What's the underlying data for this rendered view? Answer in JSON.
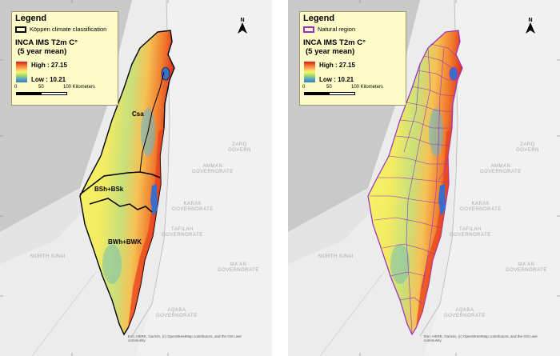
{
  "left_panel": {
    "legend_title": "Legend",
    "layer_name": "Köppen climate classification",
    "raster_title": "INCA IMS T2m C°",
    "raster_subtitle": "(5 year mean)",
    "high_label": "High : 27.15",
    "low_label": "Low : 10.21",
    "scale_0": "0",
    "scale_50": "50",
    "scale_100": "100 Kilometers",
    "zones": [
      "Csa",
      "BSh+BSk",
      "BWh+BWK"
    ],
    "regions": {
      "amman": "AMMAN\nGOVERNORATE",
      "zarqa": "ZARQ\nGOVERN",
      "karak": "KARAK\nGOVERNORATE",
      "tafilah": "TAFILAH\nGOVERNORATE",
      "maan": "MA'AN\nGOVERNORATE",
      "north_sinai": "NORTH SINAI",
      "aqaba": "AQABA\nGOVERNORATE"
    },
    "credit": "Esri, HERE, Garmin, (c) OpenStreetMap contributors, and the GIS user community"
  },
  "right_panel": {
    "legend_title": "Legend",
    "layer_name": "Natural region",
    "raster_title": "INCA IMS T2m C°",
    "raster_subtitle": "(5 year mean)",
    "high_label": "High : 27.15",
    "low_label": "Low : 10.21",
    "scale_0": "0",
    "scale_50": "50",
    "scale_100": "100 Kilometers",
    "regions": {
      "amman": "AMMAN\nGOVERNORATE",
      "zarqa": "ZARQ\nGOVERN",
      "karak": "KARAK\nGOVERNORATE",
      "tafilah": "TAFILAH\nGOVERNORATE",
      "maan": "MA'AN\nGOVERNORATE",
      "north_sinai": "NORTH SINAI",
      "aqaba": "AQABA\nGOVERNORATE"
    },
    "credit": "Esri, HERE, Garmin, (c) OpenStreetMap contributors, and the GIS user community"
  },
  "colors": {
    "legend_bg": "#fdfbc8",
    "high": "#d7191c",
    "mid": "#f7f76a",
    "low": "#2b83ba",
    "natural_region_outline": "#9b2cc7",
    "koppen_outline": "#000000",
    "water": "#3a6ec9"
  },
  "icons": [
    "north-arrow-icon"
  ]
}
